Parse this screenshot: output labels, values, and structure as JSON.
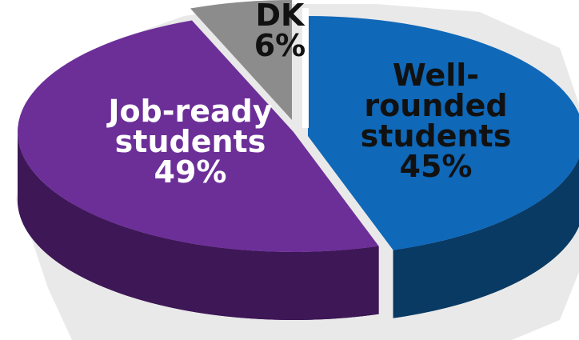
{
  "chart_data": {
    "type": "pie",
    "title": "",
    "slices": [
      {
        "label_lines": [
          "Well-",
          "rounded",
          "students"
        ],
        "value_label": "45%",
        "value": 45,
        "color": "#0f68b8",
        "side_color": "#083a63",
        "text_color": "#111111"
      },
      {
        "label_lines": [
          "Job-ready",
          "students"
        ],
        "value_label": "49%",
        "value": 49,
        "color": "#6c2f98",
        "side_color": "#3d1756",
        "text_color": "#ffffff"
      },
      {
        "label_lines": [
          "DK"
        ],
        "value_label": "6%",
        "value": 6,
        "color": "#8c8c8c",
        "side_color": "#555555",
        "text_color": "#111111"
      }
    ]
  }
}
